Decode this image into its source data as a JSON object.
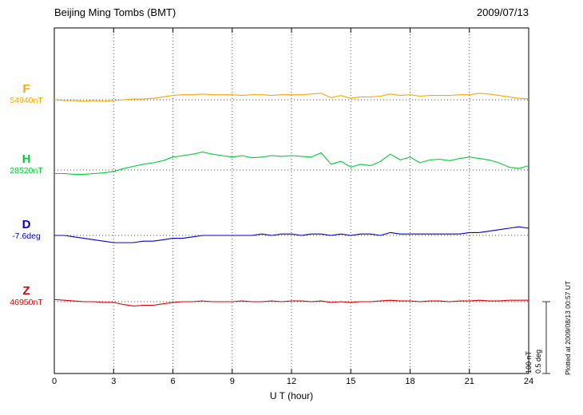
{
  "chart_data": {
    "type": "line",
    "title": "Beijing Ming Tombs (BMT)",
    "date_label": "2009/07/13",
    "xlabel": "U T (hour)",
    "xlim": [
      0,
      24
    ],
    "x_ticks": [
      0,
      3,
      6,
      9,
      12,
      15,
      18,
      21,
      24
    ],
    "sample_step_hours": 0.5,
    "grid": "dotted vertical lines every 3 hours; dotted horizontal baseline per trace",
    "legend_position": "left margin channel labels",
    "series": [
      {
        "name": "F",
        "color": "#FFA500",
        "unit": "nT",
        "baseline_value_label": "54940nT",
        "values": [
          0,
          -1,
          -1,
          -2,
          -1,
          -2,
          -1,
          0,
          1,
          1,
          2,
          4,
          6,
          7,
          7,
          8,
          7,
          7,
          7,
          6,
          7,
          7,
          6,
          7,
          7,
          7,
          8,
          9,
          3,
          6,
          2,
          4,
          4,
          5,
          8,
          6,
          7,
          5,
          6,
          6,
          6,
          7,
          7,
          9,
          8,
          6,
          4,
          2,
          1
        ]
      },
      {
        "name": "H",
        "color": "#00CC33",
        "unit": "nT",
        "baseline_value_label": "28520nT",
        "values": [
          -5,
          -5,
          -6,
          -6,
          -5,
          -4,
          -2,
          2,
          5,
          8,
          10,
          13,
          18,
          20,
          22,
          25,
          22,
          20,
          18,
          20,
          17,
          18,
          20,
          19,
          20,
          19,
          18,
          24,
          8,
          12,
          4,
          8,
          6,
          12,
          22,
          14,
          18,
          10,
          14,
          15,
          13,
          16,
          18,
          16,
          14,
          10,
          4,
          2,
          6
        ]
      },
      {
        "name": "D",
        "color": "#0000CC",
        "unit": "deg",
        "baseline_value_label": "-7.6deg",
        "values": [
          0,
          0,
          -0.01,
          -0.02,
          -0.03,
          -0.04,
          -0.05,
          -0.05,
          -0.05,
          -0.04,
          -0.04,
          -0.03,
          -0.02,
          -0.02,
          -0.01,
          0,
          0,
          0,
          0,
          0,
          0,
          0.01,
          0,
          0.01,
          0.01,
          0,
          0.01,
          0.01,
          0,
          0.01,
          0,
          0.01,
          0.01,
          0,
          0.02,
          0.01,
          0.01,
          0.01,
          0.01,
          0.01,
          0.01,
          0.01,
          0.02,
          0.02,
          0.03,
          0.04,
          0.05,
          0.06,
          0.05
        ]
      },
      {
        "name": "Z",
        "color": "#DD0000",
        "unit": "nT",
        "baseline_value_label": "46950nT",
        "values": [
          3,
          2,
          1,
          0,
          0,
          -1,
          -1,
          -4,
          -6,
          -5,
          -5,
          -3,
          -1,
          0,
          0,
          1,
          0,
          0,
          0,
          1,
          0,
          0,
          1,
          0,
          1,
          1,
          0,
          1,
          -1,
          0,
          -1,
          0,
          0,
          1,
          2,
          1,
          1,
          0,
          1,
          1,
          0,
          1,
          1,
          2,
          1,
          1,
          2,
          2,
          2
        ]
      }
    ],
    "scale_bar": {
      "labels": [
        "100 nT",
        "0.5 deg"
      ]
    },
    "footer_note": "Plotted at 2009/08/13 00:57 UT"
  }
}
